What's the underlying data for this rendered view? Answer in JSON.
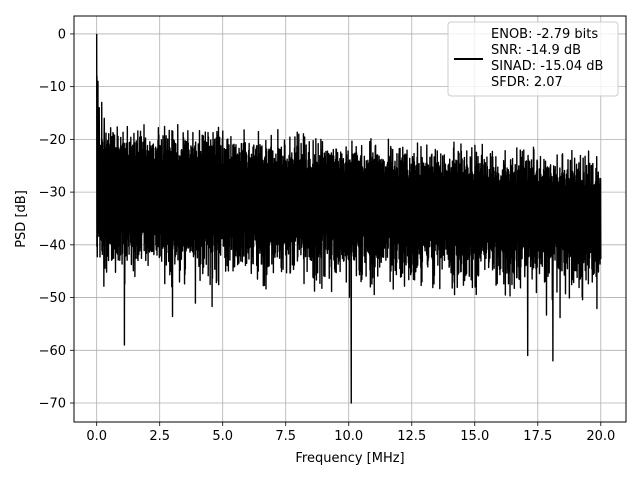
{
  "chart_data": {
    "type": "line",
    "title": "",
    "xlabel": "Frequency [MHz]",
    "ylabel": "PSD [dB]",
    "xlim": [
      -0.9,
      21.0
    ],
    "ylim": [
      -73.6,
      3.4
    ],
    "x_ticks": [
      0.0,
      2.5,
      5.0,
      7.5,
      10.0,
      12.5,
      15.0,
      17.5,
      20.0
    ],
    "x_tick_labels": [
      "0.0",
      "2.5",
      "5.0",
      "7.5",
      "10.0",
      "12.5",
      "15.0",
      "17.5",
      "20.0"
    ],
    "y_ticks": [
      0,
      -10,
      -20,
      -30,
      -40,
      -50,
      -60,
      -70
    ],
    "y_tick_labels": [
      "0",
      "−10",
      "−20",
      "−30",
      "−40",
      "−50",
      "−60",
      "−70"
    ],
    "grid": true,
    "legend_position": "top-right",
    "series": [
      {
        "name": "ENOB: -2.79 bits\nSNR: -14.9 dB\nSINAD: -15.04 dB\nSFDR: 2.07",
        "legend_lines": [
          "ENOB: -2.79 bits",
          "SNR: -14.9 dB",
          "SINAD: -15.04 dB",
          "SFDR: 2.07"
        ],
        "color": "#000000",
        "x_range": [
          0.0,
          20.0
        ],
        "peak": {
          "x": 0.0,
          "y": 0.0
        },
        "notable_points": [
          {
            "x": 0.05,
            "y": -9
          },
          {
            "x": 0.1,
            "y": -14
          },
          {
            "x": 0.2,
            "y": -13
          },
          {
            "x": 0.3,
            "y": -16
          },
          {
            "x": 1.1,
            "y": -59
          },
          {
            "x": 10.1,
            "y": -70
          },
          {
            "x": 17.1,
            "y": -61
          },
          {
            "x": 18.1,
            "y": -62
          }
        ],
        "envelope_upper_start": -16,
        "envelope_upper_end": -22,
        "envelope_lower_typical": -46,
        "band_center": -32
      }
    ]
  }
}
